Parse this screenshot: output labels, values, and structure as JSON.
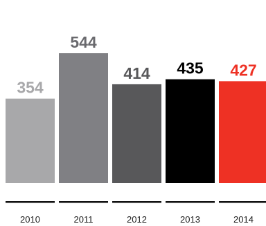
{
  "chart_data": {
    "type": "bar",
    "title": "",
    "xlabel": "",
    "ylabel": "",
    "categories": [
      "2010",
      "2011",
      "2012",
      "2013",
      "2014"
    ],
    "values": [
      354,
      544,
      414,
      435,
      427
    ],
    "ylim": [
      0,
      544
    ],
    "grid": false,
    "bar_colors": [
      "#a8a8aa",
      "#808084",
      "#58585a",
      "#000000",
      "#ee3124"
    ],
    "label_colors": [
      "#a8a8aa",
      "#6a6a6e",
      "#58585a",
      "#000000",
      "#ee3124"
    ],
    "axis_color": "#111111"
  }
}
